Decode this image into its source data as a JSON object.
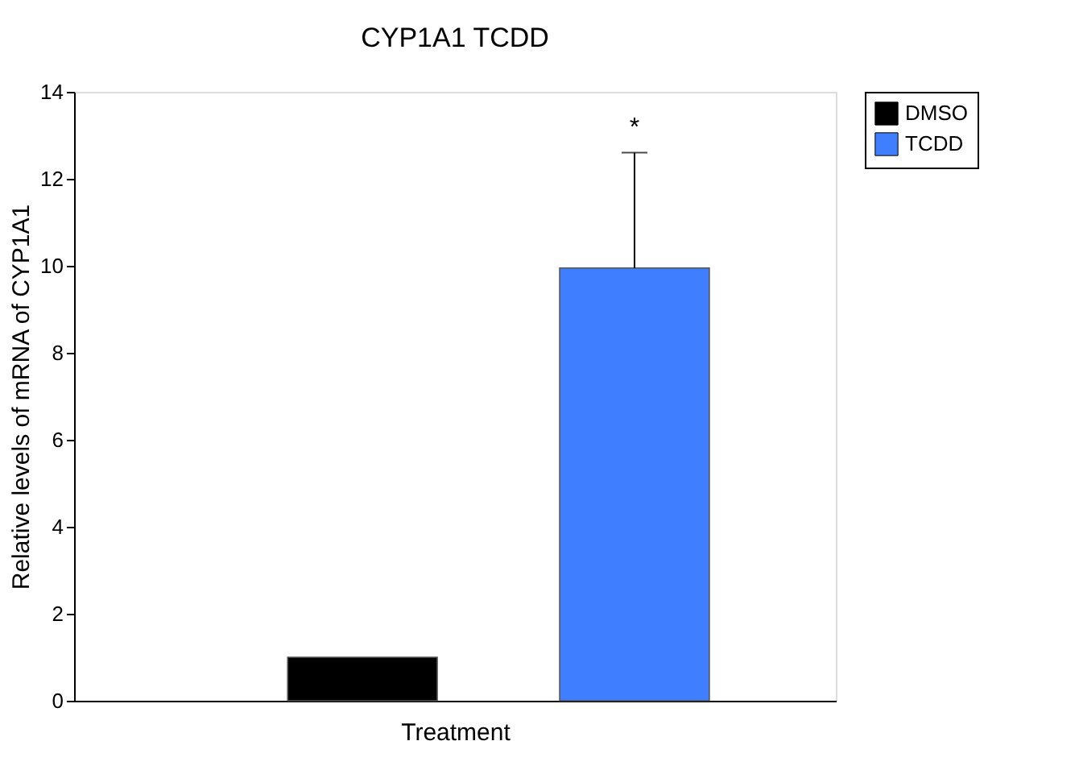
{
  "chart_data": {
    "type": "bar",
    "title": "CYP1A1 TCDD",
    "xlabel": "Treatment",
    "ylabel": "Relative levels of mRNA of CYP1A1",
    "categories": [
      null
    ],
    "series": [
      {
        "name": "DMSO",
        "color": "#000000",
        "values": [
          1.0
        ],
        "errors": [
          null
        ]
      },
      {
        "name": "TCDD",
        "color": "#3f7fff",
        "values": [
          9.95
        ],
        "errors": [
          [
            9.95,
            12.6
          ]
        ]
      }
    ],
    "ylim": [
      0,
      14
    ],
    "yticks": [
      0,
      2,
      4,
      6,
      8,
      10,
      12,
      14
    ],
    "grid": false,
    "legend": "right",
    "annotations": [
      "*"
    ]
  }
}
